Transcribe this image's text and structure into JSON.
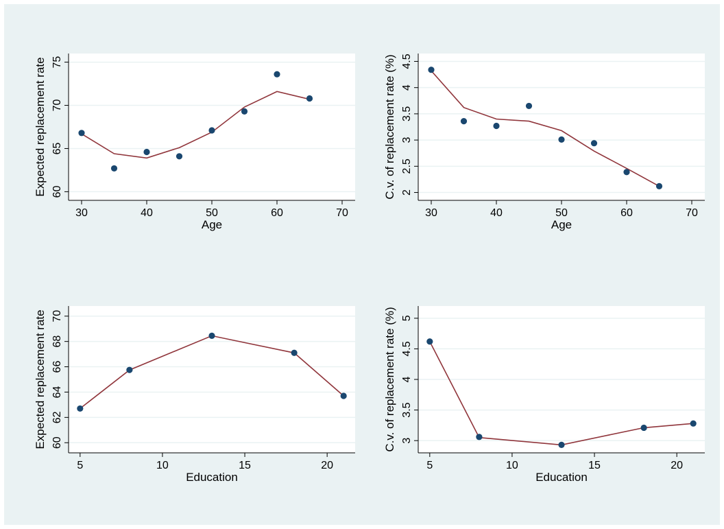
{
  "colors": {
    "figure_background": "#eaf2f3",
    "plot_background": "#ffffff",
    "grid": "#eaf2f3",
    "marker": "#1a476f",
    "fit_line": "#90353b",
    "axis": "#000000"
  },
  "chart_data": [
    {
      "type": "scatter",
      "xlabel": "Age",
      "ylabel": "Expected replacement rate",
      "xlim": [
        28,
        72
      ],
      "ylim": [
        59,
        76
      ],
      "xticks": [
        30,
        40,
        50,
        60,
        70
      ],
      "yticks": [
        60,
        65,
        70,
        75
      ],
      "grid": true,
      "series": [
        {
          "kind": "points",
          "x": [
            30,
            35,
            40,
            45,
            50,
            55,
            60,
            65
          ],
          "y": [
            66.8,
            62.7,
            64.6,
            64.1,
            67.1,
            69.3,
            73.6,
            70.8
          ]
        },
        {
          "kind": "line",
          "x": [
            30,
            35,
            40,
            45,
            50,
            55,
            60,
            65
          ],
          "y": [
            66.7,
            64.4,
            63.9,
            65.1,
            66.9,
            69.8,
            71.6,
            70.7
          ]
        }
      ]
    },
    {
      "type": "scatter",
      "xlabel": "Age",
      "ylabel": "C.v. of replacement rate (%)",
      "xlim": [
        28,
        72
      ],
      "ylim": [
        1.85,
        4.65
      ],
      "xticks": [
        30,
        40,
        50,
        60,
        70
      ],
      "yticks": [
        2,
        2.5,
        3,
        3.5,
        4,
        4.5
      ],
      "grid": true,
      "series": [
        {
          "kind": "points",
          "x": [
            30,
            35,
            40,
            45,
            50,
            55,
            60,
            65
          ],
          "y": [
            4.34,
            3.36,
            3.27,
            3.65,
            3.01,
            2.94,
            2.39,
            2.12
          ]
        },
        {
          "kind": "line",
          "x": [
            30,
            35,
            40,
            45,
            50,
            55,
            60,
            65
          ],
          "y": [
            4.32,
            3.62,
            3.4,
            3.36,
            3.18,
            2.79,
            2.46,
            2.12
          ]
        }
      ]
    },
    {
      "type": "scatter",
      "xlabel": "Education",
      "ylabel": "Expected replacement rate",
      "xlim": [
        4.3,
        21.7
      ],
      "ylim": [
        59.2,
        70.8
      ],
      "xticks": [
        5,
        10,
        15,
        20
      ],
      "yticks": [
        60,
        62,
        64,
        66,
        68,
        70
      ],
      "grid": true,
      "series": [
        {
          "kind": "points",
          "x": [
            5,
            8,
            13,
            18,
            21
          ],
          "y": [
            62.7,
            65.75,
            68.45,
            67.1,
            63.7
          ]
        },
        {
          "kind": "line",
          "x": [
            5,
            8,
            13,
            18,
            21
          ],
          "y": [
            62.7,
            65.75,
            68.45,
            67.1,
            63.7
          ]
        }
      ]
    },
    {
      "type": "scatter",
      "xlabel": "Education",
      "ylabel": "C.v. of replacement rate (%)",
      "xlim": [
        4.3,
        21.7
      ],
      "ylim": [
        2.8,
        5.2
      ],
      "xticks": [
        5,
        10,
        15,
        20
      ],
      "yticks": [
        3,
        3.5,
        4,
        4.5,
        5
      ],
      "grid": true,
      "series": [
        {
          "kind": "points",
          "x": [
            5,
            8,
            13,
            18,
            21
          ],
          "y": [
            4.62,
            3.06,
            2.93,
            3.21,
            3.28
          ]
        },
        {
          "kind": "line",
          "x": [
            5,
            8,
            13,
            18,
            21
          ],
          "y": [
            4.62,
            3.05,
            2.93,
            3.21,
            3.28
          ]
        }
      ]
    }
  ]
}
